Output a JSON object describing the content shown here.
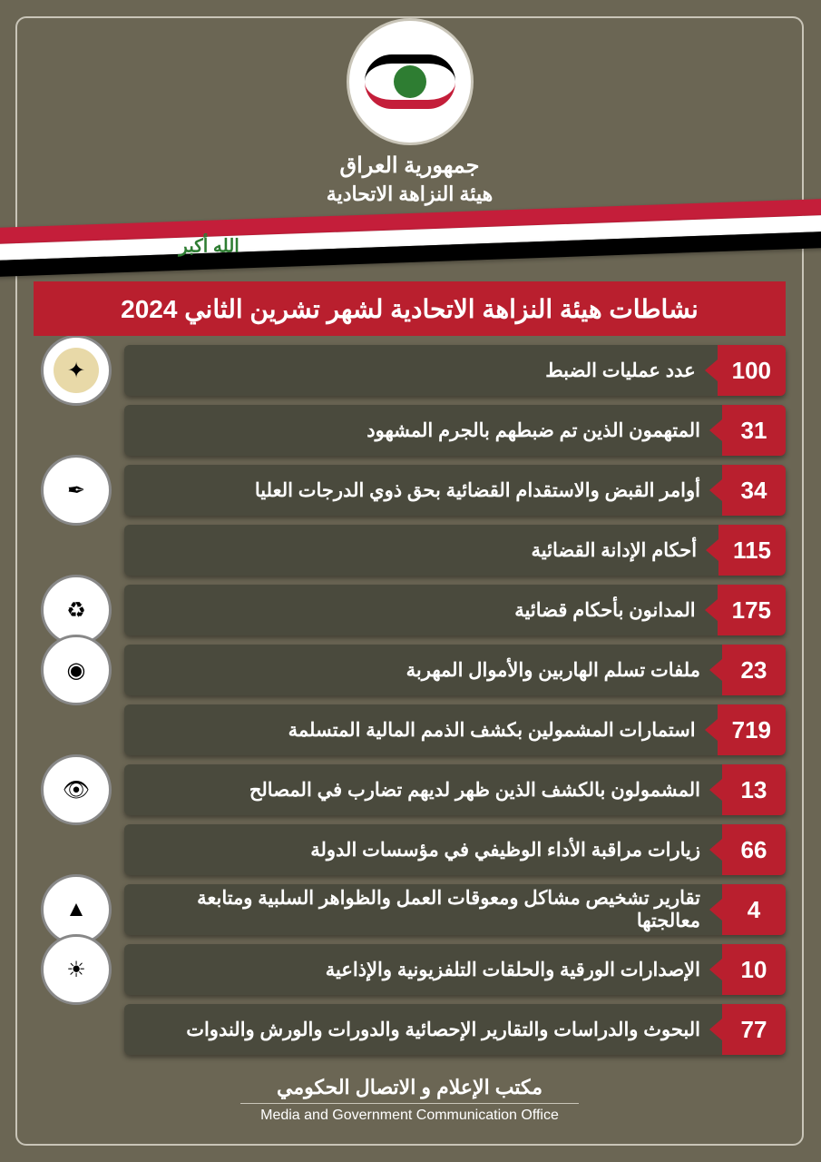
{
  "header": {
    "line1": "جمهورية العراق",
    "line2": "هيئة النزاهة الاتحادية",
    "takbir": "الله أكبر"
  },
  "title": "نشاطات هيئة النزاهة الاتحادية لشهر تشرين الثاني 2024",
  "stats": [
    {
      "num": "100",
      "label": "عدد عمليات الضبط"
    },
    {
      "num": "31",
      "label": "المتهمون الذين تم ضبطهم بالجرم المشهود"
    },
    {
      "num": "34",
      "label": "أوامر القبض والاستقدام القضائية بحق ذوي الدرجات العليا"
    },
    {
      "num": "115",
      "label": "أحكام الإدانة القضائية"
    },
    {
      "num": "175",
      "label": "المدانون بأحكام قضائية"
    },
    {
      "num": "23",
      "label": "ملفات تسلم الهاربين والأموال المهربة"
    },
    {
      "num": "719",
      "label": "استمارات المشمولين بكشف الذمم المالية المتسلمة"
    },
    {
      "num": "13",
      "label": "المشمولون بالكشف الذين ظهر لديهم تضارب في المصالح"
    },
    {
      "num": "66",
      "label": "زيارات مراقبة الأداء الوظيفي في مؤسسات الدولة"
    },
    {
      "num": "4",
      "label": "تقارير تشخيص مشاكل ومعوقات العمل والظواهر السلبية ومتابعة معالجتها"
    },
    {
      "num": "10",
      "label": "الإصدارات الورقية والحلقات التلفزيونية والإذاعية"
    },
    {
      "num": "77",
      "label": "البحوث والدراسات والتقارير الإحصائية والدورات والورش والندوات"
    }
  ],
  "sideIcons": [
    {
      "row": 0,
      "bg": "#e8d9a8",
      "glyph": "✦"
    },
    {
      "row": 2,
      "bg": "#ffffff",
      "glyph": "✒"
    },
    {
      "row": 4,
      "bg": "#ffffff",
      "glyph": "♻"
    },
    {
      "row": 5,
      "bg": "#ffffff",
      "glyph": "◉"
    },
    {
      "row": 7,
      "bg": "#ffffff",
      "glyph": "👁"
    },
    {
      "row": 9,
      "bg": "#ffffff",
      "glyph": "▲"
    },
    {
      "row": 10,
      "bg": "#ffffff",
      "glyph": "☀"
    }
  ],
  "footer": {
    "ar": "مكتب الإعلام و الاتصال الحكومي",
    "en": "Media and Government Communication Office"
  },
  "colors": {
    "bg": "#6b6654",
    "barBg": "#4a4a3d",
    "accent": "#b91f2e",
    "flagRed": "#c41e3a",
    "flagGreen": "#2e7d32"
  }
}
